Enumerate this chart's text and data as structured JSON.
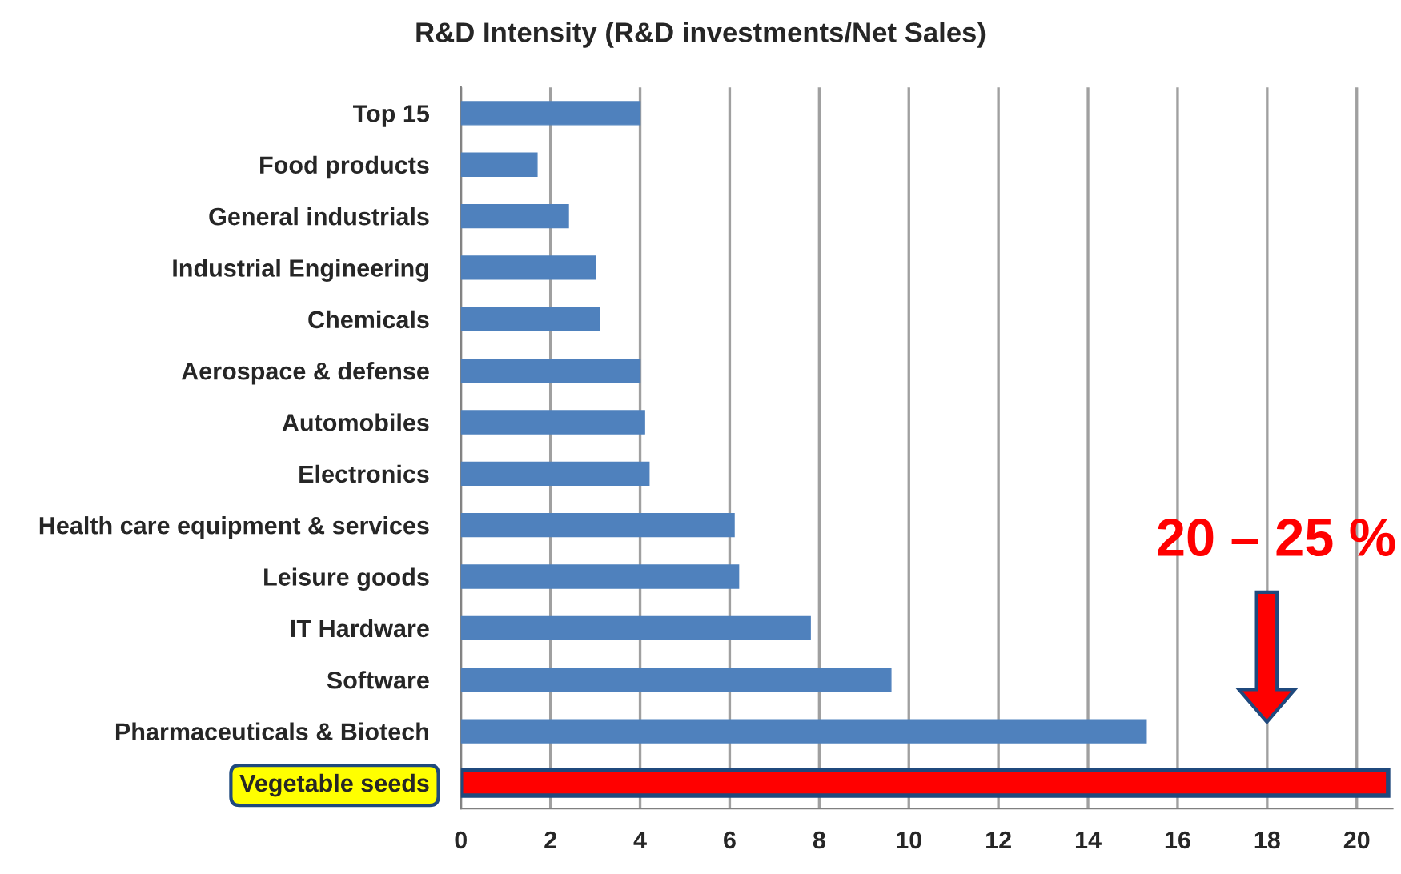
{
  "chart_data": {
    "type": "bar",
    "orientation": "horizontal",
    "title": "R&D Intensity (R&D investments/Net Sales)",
    "categories": [
      "Top 15",
      "Food products",
      "General industrials",
      "Industrial Engineering",
      "Chemicals",
      "Aerospace & defense",
      "Automobiles",
      "Electronics",
      "Health care equipment & services",
      "Leisure goods",
      "IT Hardware",
      "Software",
      "Pharmaceuticals & Biotech",
      "Vegetable seeds"
    ],
    "values": [
      4.0,
      1.7,
      2.4,
      3.0,
      3.1,
      4.0,
      4.1,
      4.2,
      6.1,
      6.2,
      7.8,
      9.6,
      15.3,
      20.7
    ],
    "colors": [
      "#4f81bd",
      "#4f81bd",
      "#4f81bd",
      "#4f81bd",
      "#4f81bd",
      "#4f81bd",
      "#4f81bd",
      "#4f81bd",
      "#4f81bd",
      "#4f81bd",
      "#4f81bd",
      "#4f81bd",
      "#4f81bd",
      "#ff0000"
    ],
    "xlim": [
      0,
      20.8
    ],
    "xticks": [
      0,
      2,
      4,
      6,
      8,
      10,
      12,
      14,
      16,
      18,
      20
    ],
    "grid": "x",
    "legend": false,
    "annotations": [
      "20 – 25 %"
    ]
  }
}
